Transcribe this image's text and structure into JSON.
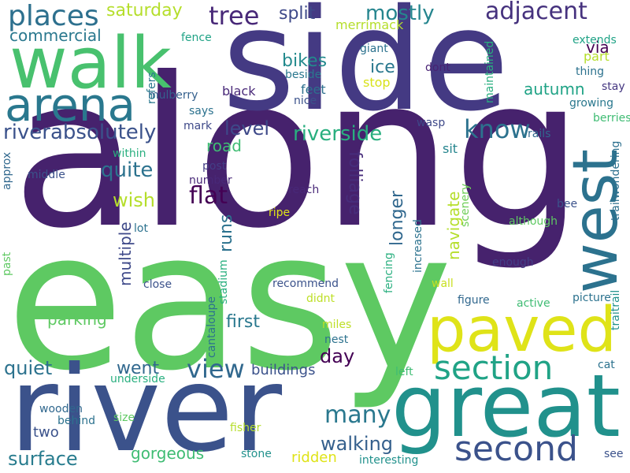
{
  "words": [
    {
      "text": "along",
      "color": "#46226d"
    },
    {
      "text": "easy",
      "color": "#5ec962"
    },
    {
      "text": "side",
      "color": "#443a83"
    },
    {
      "text": "river",
      "color": "#3b528b"
    },
    {
      "text": "great",
      "color": "#21918c"
    },
    {
      "text": "walk",
      "color": "#48c16e"
    },
    {
      "text": "paved",
      "color": "#dfe318"
    },
    {
      "text": "west",
      "color": "#2c728e"
    },
    {
      "text": "arena",
      "color": "#2a788e"
    },
    {
      "text": "second",
      "color": "#3b528b"
    },
    {
      "text": "section",
      "color": "#20a386"
    },
    {
      "text": "adjacent",
      "color": "#46327e"
    },
    {
      "text": "places",
      "color": "#2d708e"
    },
    {
      "text": "riverabsolutely",
      "color": "#3b528b"
    },
    {
      "text": "view",
      "color": "#31688e"
    },
    {
      "text": "know",
      "color": "#2c728e"
    },
    {
      "text": "tree",
      "color": "#482878"
    },
    {
      "text": "mostly",
      "color": "#25858e"
    },
    {
      "text": "riverside",
      "color": "#29af7f"
    },
    {
      "text": "many",
      "color": "#2a788e"
    },
    {
      "text": "flat",
      "color": "#440154"
    },
    {
      "text": "quite",
      "color": "#2c728e"
    },
    {
      "text": "saturday",
      "color": "#b5de2b"
    },
    {
      "text": "commercial",
      "color": "#2a788e"
    },
    {
      "text": "split",
      "color": "#3e4989"
    },
    {
      "text": "level",
      "color": "#3e4989"
    },
    {
      "text": "walking",
      "color": "#35608d"
    },
    {
      "text": "surface",
      "color": "#287c8e"
    },
    {
      "text": "quiet",
      "color": "#2c728e"
    },
    {
      "text": "day",
      "color": "#440154"
    },
    {
      "text": "first",
      "color": "#2a788e"
    },
    {
      "text": "went",
      "color": "#31688e"
    },
    {
      "text": "wish",
      "color": "#b5de2b"
    },
    {
      "text": "parking",
      "color": "#5ec962"
    },
    {
      "text": "gorgeous",
      "color": "#3fbc73"
    },
    {
      "text": "autumn",
      "color": "#20a386"
    },
    {
      "text": "road",
      "color": "#3fbc73"
    },
    {
      "text": "via",
      "color": "#440154"
    },
    {
      "text": "bikes",
      "color": "#238a8d"
    },
    {
      "text": "ice",
      "color": "#2a788e"
    },
    {
      "text": "folliage",
      "color": "#472d7b"
    },
    {
      "text": "longer",
      "color": "#31688e"
    },
    {
      "text": "navigate",
      "color": "#b5de2b"
    },
    {
      "text": "multiple",
      "color": "#3e4989"
    },
    {
      "text": "runs",
      "color": "#2c728e"
    },
    {
      "text": "buildings",
      "color": "#3b528b"
    },
    {
      "text": "two",
      "color": "#3b528b"
    },
    {
      "text": "ridden",
      "color": "#dfe318"
    },
    {
      "text": "merrimack",
      "color": "#b5de2b"
    },
    {
      "text": "part",
      "color": "#b5de2b"
    },
    {
      "text": "stop",
      "color": "#d8e219"
    },
    {
      "text": "sit",
      "color": "#25858e"
    },
    {
      "text": "feet",
      "color": "#2d708e"
    },
    {
      "text": "black",
      "color": "#482878"
    },
    {
      "text": "mulberry",
      "color": "#35608d"
    },
    {
      "text": "thing",
      "color": "#2c728e"
    },
    {
      "text": "growing",
      "color": "#2a788e"
    },
    {
      "text": "berries",
      "color": "#3fbc73"
    },
    {
      "text": "stay",
      "color": "#453781"
    },
    {
      "text": "increased",
      "color": "#2c728e"
    },
    {
      "text": "scenery",
      "color": "#6ece58"
    },
    {
      "text": "post",
      "color": "#433e85"
    },
    {
      "text": "number",
      "color": "#482878"
    },
    {
      "text": "wasp",
      "color": "#3e4989"
    },
    {
      "text": "rails",
      "color": "#31688e"
    },
    {
      "text": "reach",
      "color": "#482878"
    },
    {
      "text": "giant",
      "color": "#2c728e"
    },
    {
      "text": "dont",
      "color": "#482173"
    },
    {
      "text": "fence",
      "color": "#20a386"
    },
    {
      "text": "beside",
      "color": "#2a788e"
    },
    {
      "text": "nice",
      "color": "#3b528b"
    },
    {
      "text": "says",
      "color": "#2c728e"
    },
    {
      "text": "mark",
      "color": "#3e4989"
    },
    {
      "text": "within",
      "color": "#29af7f"
    },
    {
      "text": "middle",
      "color": "#3b528b"
    },
    {
      "text": "approx",
      "color": "#31688e"
    },
    {
      "text": "refers",
      "color": "#2a788e"
    },
    {
      "text": "maintained",
      "color": "#29af7f"
    },
    {
      "text": "extends",
      "color": "#20a386"
    },
    {
      "text": "trailwondering",
      "color": "#2d708e"
    },
    {
      "text": "traitrail",
      "color": "#21918c"
    },
    {
      "text": "bee",
      "color": "#3b528b"
    },
    {
      "text": "although",
      "color": "#5ec962"
    },
    {
      "text": "enough",
      "color": "#433e85"
    },
    {
      "text": "ripe",
      "color": "#dfe318"
    },
    {
      "text": "lot",
      "color": "#2c728e"
    },
    {
      "text": "recommend",
      "color": "#3b528b"
    },
    {
      "text": "didnt",
      "color": "#bddf26"
    },
    {
      "text": "close",
      "color": "#3b528b"
    },
    {
      "text": "stadium",
      "color": "#29af7f"
    },
    {
      "text": "cantaloupe",
      "color": "#2c728e"
    },
    {
      "text": "fencing",
      "color": "#29af7f"
    },
    {
      "text": "wall",
      "color": "#c8e020"
    },
    {
      "text": "figure",
      "color": "#31688e"
    },
    {
      "text": "active",
      "color": "#3fbc73"
    },
    {
      "text": "picture",
      "color": "#2c728e"
    },
    {
      "text": "past",
      "color": "#5ec962"
    },
    {
      "text": "underside",
      "color": "#29af7f"
    },
    {
      "text": "miles",
      "color": "#bddf26"
    },
    {
      "text": "nest",
      "color": "#2c728e"
    },
    {
      "text": "left",
      "color": "#3fbc73"
    },
    {
      "text": "cat",
      "color": "#2c728e"
    },
    {
      "text": "wooden",
      "color": "#31688e"
    },
    {
      "text": "behind",
      "color": "#2c728e"
    },
    {
      "text": "size",
      "color": "#5ec962"
    },
    {
      "text": "fisher",
      "color": "#b5de2b"
    },
    {
      "text": "stone",
      "color": "#21918c"
    },
    {
      "text": "interesting",
      "color": "#21918c"
    },
    {
      "text": "see",
      "color": "#3b528b"
    }
  ]
}
